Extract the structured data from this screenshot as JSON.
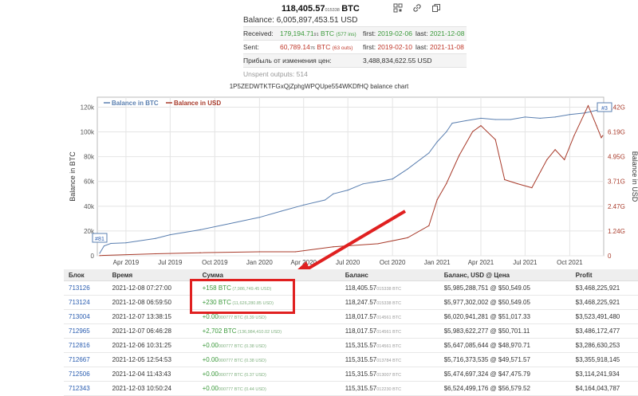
{
  "summary": {
    "balance_btc_main": "118,405.57",
    "balance_btc_sub": "015338",
    "balance_btc_unit": "BTC",
    "balance_usd": "Balance: 6,005,897,453.51 USD",
    "received_label": "Received:",
    "received_value": "179,194.71",
    "received_sub": "91",
    "received_unit": "BTC",
    "received_ins": "(577 ins)",
    "received_first_label": "first:",
    "received_first": "2019-02-06",
    "received_last_label": "last:",
    "received_last": "2021-12-08",
    "sent_label": "Sent:",
    "sent_value": "60,789.14",
    "sent_sub": "76",
    "sent_unit": "BTC",
    "sent_outs": "(63 outs)",
    "sent_first_label": "first:",
    "sent_first": "2019-02-10",
    "sent_last_label": "last:",
    "sent_last": "2021-11-08",
    "profit_label": "Прибыль от изменения цен:",
    "profit_value": "3,488,834,622.55 USD",
    "unspent_label": "Unspent outputs: 514"
  },
  "icons": [
    "qr-code-icon",
    "link-icon",
    "copy-icon"
  ],
  "chart": {
    "title": "1P5ZEDWTKTFGxQjZphgWPQUpe554WKDfHQ balance chart",
    "legend_btc": "Balance in BTC",
    "legend_usd": "Balance in USD",
    "left_marker": "#81",
    "right_marker": "#3",
    "colors": {
      "btc": "#5a7fb0",
      "usd": "#a83a2a"
    }
  },
  "chart_data": {
    "type": "line",
    "ylabel": "Balance in BTC",
    "y2label": "Balance in USD",
    "x_ticks": [
      "Apr 2019",
      "Jul 2019",
      "Oct 2019",
      "Jan 2020",
      "Apr 2020",
      "Jul 2020",
      "Oct 2020",
      "Jan 2021",
      "Apr 2021",
      "Jul 2021",
      "Oct 2021"
    ],
    "y_ticks": [
      "0",
      "20k",
      "40k",
      "60k",
      "80k",
      "100k",
      "120k"
    ],
    "y2_ticks": [
      "0",
      "1.24G",
      "2.47G",
      "3.71G",
      "4.95G",
      "6.19G",
      "7.42G"
    ],
    "ylim": [
      0,
      128000
    ],
    "y2lim": [
      0,
      7.92
    ],
    "x_start": "2019-02-01",
    "x_end": "2021-12-10",
    "series": [
      {
        "name": "Balance in BTC",
        "axis": "left",
        "points": [
          [
            "2019-02-06",
            2000
          ],
          [
            "2019-02-15",
            8000
          ],
          [
            "2019-03-01",
            10000
          ],
          [
            "2019-04-01",
            10500
          ],
          [
            "2019-06-01",
            14000
          ],
          [
            "2019-07-01",
            17000
          ],
          [
            "2019-09-01",
            21000
          ],
          [
            "2019-11-01",
            26000
          ],
          [
            "2020-01-01",
            31000
          ],
          [
            "2020-02-15",
            36000
          ],
          [
            "2020-04-01",
            41000
          ],
          [
            "2020-05-15",
            45000
          ],
          [
            "2020-06-01",
            50000
          ],
          [
            "2020-07-01",
            53000
          ],
          [
            "2020-08-01",
            58000
          ],
          [
            "2020-09-01",
            60000
          ],
          [
            "2020-10-01",
            62000
          ],
          [
            "2020-11-01",
            70000
          ],
          [
            "2020-12-15",
            83000
          ],
          [
            "2021-01-01",
            92000
          ],
          [
            "2021-01-20",
            100000
          ],
          [
            "2021-02-01",
            107000
          ],
          [
            "2021-03-01",
            109000
          ],
          [
            "2021-04-01",
            111000
          ],
          [
            "2021-05-01",
            110000
          ],
          [
            "2021-06-01",
            110000
          ],
          [
            "2021-07-01",
            112000
          ],
          [
            "2021-08-01",
            111000
          ],
          [
            "2021-09-01",
            112000
          ],
          [
            "2021-10-01",
            114000
          ],
          [
            "2021-11-01",
            115300
          ],
          [
            "2021-12-08",
            118405
          ]
        ]
      },
      {
        "name": "Balance in USD",
        "axis": "right",
        "points": [
          [
            "2019-02-06",
            0.01
          ],
          [
            "2019-06-01",
            0.1
          ],
          [
            "2019-09-01",
            0.15
          ],
          [
            "2020-01-01",
            0.2
          ],
          [
            "2020-03-15",
            0.2
          ],
          [
            "2020-06-01",
            0.45
          ],
          [
            "2020-09-01",
            0.6
          ],
          [
            "2020-11-01",
            0.9
          ],
          [
            "2020-12-15",
            1.5
          ],
          [
            "2021-01-01",
            2.8
          ],
          [
            "2021-01-20",
            3.6
          ],
          [
            "2021-02-15",
            5.0
          ],
          [
            "2021-03-15",
            6.2
          ],
          [
            "2021-04-01",
            6.5
          ],
          [
            "2021-05-01",
            5.8
          ],
          [
            "2021-05-20",
            3.8
          ],
          [
            "2021-06-15",
            3.6
          ],
          [
            "2021-07-15",
            3.4
          ],
          [
            "2021-08-15",
            4.8
          ],
          [
            "2021-09-01",
            5.3
          ],
          [
            "2021-09-20",
            4.8
          ],
          [
            "2021-10-10",
            6.0
          ],
          [
            "2021-11-08",
            7.5
          ],
          [
            "2021-11-25",
            6.5
          ],
          [
            "2021-12-05",
            5.9
          ],
          [
            "2021-12-08",
            6.0
          ]
        ]
      }
    ]
  },
  "table": {
    "headers": [
      "Блок",
      "Время",
      "Сумма",
      "Баланс",
      "Баланс, USD @ Цена",
      "Profit"
    ],
    "rows": [
      {
        "block": "713126",
        "time": "2021-12-08 07:27:00",
        "amount": "+158 BTC",
        "amount_usd": "(7,986,749.45 USD)",
        "balance": "118,405.57",
        "balance_sub": "015338 BTC",
        "usd_price": "$5,985,288,751 @ $50,549.05",
        "profit": "$3,468,225,921"
      },
      {
        "block": "713124",
        "time": "2021-12-08 06:59:50",
        "amount": "+230 BTC",
        "amount_usd": "(11,626,280.85 USD)",
        "balance": "118,247.57",
        "balance_sub": "015338 BTC",
        "usd_price": "$5,977,302,002 @ $50,549.05",
        "profit": "$3,468,225,921"
      },
      {
        "block": "713004",
        "time": "2021-12-07 13:38:15",
        "amount": "+0.00",
        "amount_sub": "000777 BTC",
        "amount_usd": "(0.39 USD)",
        "balance": "118,017.57",
        "balance_sub": "014561 BTC",
        "usd_price": "$6,020,941,281 @ $51,017.33",
        "profit": "$3,523,491,480"
      },
      {
        "block": "712965",
        "time": "2021-12-07 06:46:28",
        "amount": "+2,702 BTC",
        "amount_usd": "(136,984,410.02 USD)",
        "balance": "118,017.57",
        "balance_sub": "014561 BTC",
        "usd_price": "$5,983,622,277 @ $50,701.11",
        "profit": "$3,486,172,477"
      },
      {
        "block": "712816",
        "time": "2021-12-06 10:31:25",
        "amount": "+0.00",
        "amount_sub": "000777 BTC",
        "amount_usd": "(0.38 USD)",
        "balance": "115,315.57",
        "balance_sub": "014561 BTC",
        "usd_price": "$5,647,085,644 @ $48,970.71",
        "profit": "$3,286,630,253"
      },
      {
        "block": "712667",
        "time": "2021-12-05 12:54:53",
        "amount": "+0.00",
        "amount_sub": "000777 BTC",
        "amount_usd": "(0.38 USD)",
        "balance": "115,315.57",
        "balance_sub": "013784 BTC",
        "usd_price": "$5,716,373,535 @ $49,571.57",
        "profit": "$3,355,918,145"
      },
      {
        "block": "712506",
        "time": "2021-12-04 11:43:43",
        "amount": "+0.00",
        "amount_sub": "000777 BTC",
        "amount_usd": "(0.37 USD)",
        "balance": "115,315.57",
        "balance_sub": "013007 BTC",
        "usd_price": "$5,474,697,324 @ $47,475.79",
        "profit": "$3,114,241,934"
      },
      {
        "block": "712343",
        "time": "2021-12-03 10:50:24",
        "amount": "+0.00",
        "amount_sub": "000777 BTC",
        "amount_usd": "(0.44 USD)",
        "balance": "115,315.57",
        "balance_sub": "012230 BTC",
        "usd_price": "$6,524,499,176 @ $56,579.52",
        "profit": "$4,164,043,787"
      }
    ]
  }
}
